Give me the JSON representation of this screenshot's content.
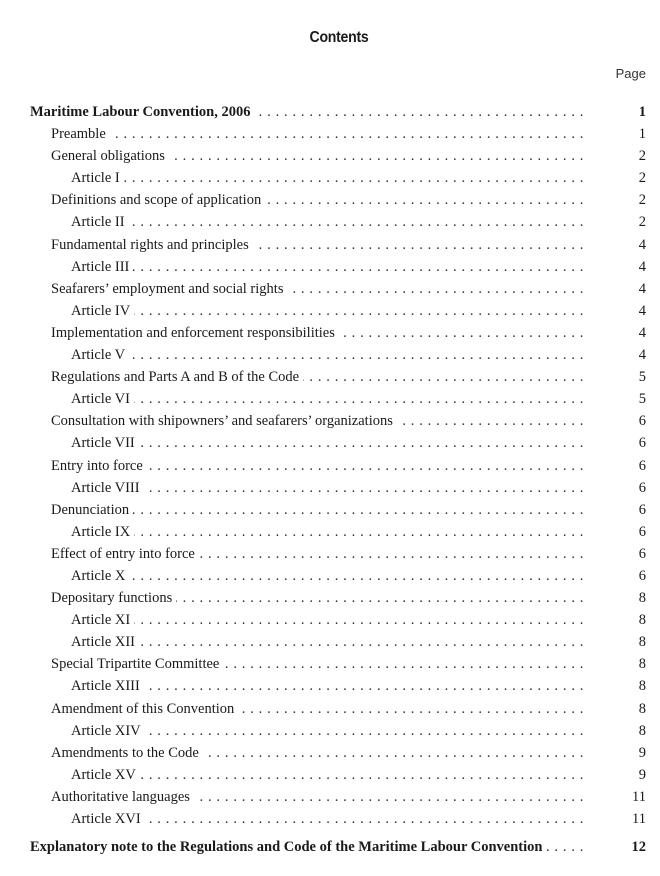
{
  "title": "Contents",
  "page_header": "Page",
  "entries": [
    {
      "label": "Maritime Labour Convention, 2006",
      "page": "1",
      "level": 0
    },
    {
      "label": "Preamble",
      "page": "1",
      "level": 1
    },
    {
      "label": "General obligations",
      "page": "2",
      "level": 1
    },
    {
      "label": "Article I",
      "page": "2",
      "level": 2
    },
    {
      "label": "Definitions and scope of application",
      "page": "2",
      "level": 1
    },
    {
      "label": "Article II",
      "page": "2",
      "level": 2
    },
    {
      "label": "Fundamental rights and principles",
      "page": "4",
      "level": 1
    },
    {
      "label": "Article III",
      "page": "4",
      "level": 2
    },
    {
      "label": "Seafarers’ employment and social rights",
      "page": "4",
      "level": 1
    },
    {
      "label": "Article IV",
      "page": "4",
      "level": 2
    },
    {
      "label": "Implementation and enforcement responsibilities",
      "page": "4",
      "level": 1
    },
    {
      "label": "Article V",
      "page": "4",
      "level": 2
    },
    {
      "label": "Regulations and Parts A and B of the Code",
      "page": "5",
      "level": 1
    },
    {
      "label": "Article VI",
      "page": "5",
      "level": 2
    },
    {
      "label": "Consultation with shipowners’ and seafarers’ organizations",
      "page": "6",
      "level": 1
    },
    {
      "label": "Article VII",
      "page": "6",
      "level": 2
    },
    {
      "label": "Entry into force",
      "page": "6",
      "level": 1
    },
    {
      "label": "Article VIII",
      "page": "6",
      "level": 2
    },
    {
      "label": "Denunciation",
      "page": "6",
      "level": 1
    },
    {
      "label": "Article IX",
      "page": "6",
      "level": 2
    },
    {
      "label": "Effect of entry into force",
      "page": "6",
      "level": 1
    },
    {
      "label": "Article X",
      "page": "6",
      "level": 2
    },
    {
      "label": "Depositary functions",
      "page": "8",
      "level": 1
    },
    {
      "label": "Article XI",
      "page": "8",
      "level": 2
    },
    {
      "label": "Article XII",
      "page": "8",
      "level": 2
    },
    {
      "label": "Special Tripartite Committee",
      "page": "8",
      "level": 1
    },
    {
      "label": "Article XIII",
      "page": "8",
      "level": 2
    },
    {
      "label": "Amendment of this Convention",
      "page": "8",
      "level": 1
    },
    {
      "label": "Article XIV",
      "page": "8",
      "level": 2
    },
    {
      "label": "Amendments to the Code",
      "page": "9",
      "level": 1
    },
    {
      "label": "Article XV",
      "page": "9",
      "level": 2
    },
    {
      "label": "Authoritative languages",
      "page": "11",
      "level": 1
    },
    {
      "label": "Article XVI",
      "page": "11",
      "level": 2
    },
    {
      "label": "Explanatory note to the Regulations and Code of the Maritime Labour Convention",
      "page": "12",
      "level": 0
    }
  ]
}
